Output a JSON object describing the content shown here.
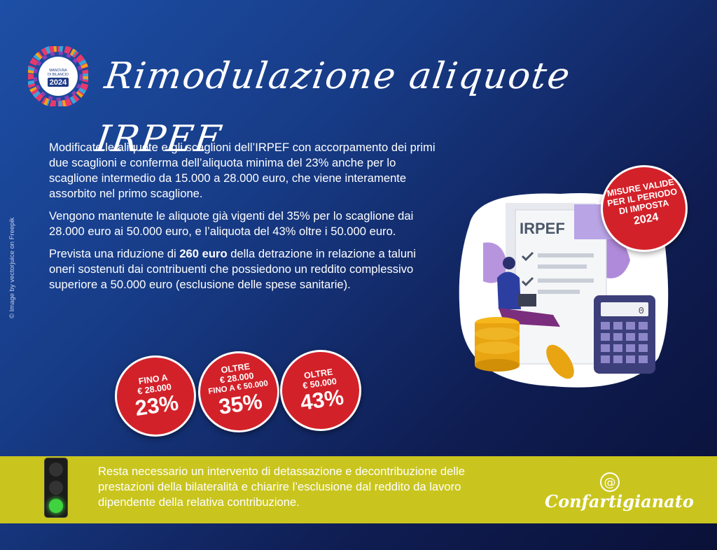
{
  "title": "Rimodulazione aliquote IRPEF",
  "logo": {
    "line1": "MANOVRA",
    "line2": "DI BILANCIO",
    "year": "2024"
  },
  "credit": "© Image by vectorjuice on Freepik",
  "paragraphs": {
    "p1": "Modificate le aliquote e gli scaglioni dell’IRPEF con accorpamento dei primi due scaglioni e conferma dell’aliquota minima del 23% anche per lo scaglione intermedio da 15.000 a 28.000 euro, che viene interamente assorbito nel primo scaglione.",
    "p2": "Vengono mantenute le aliquote già vigenti del 35% per lo scaglione dai 28.000 euro ai 50.000 euro, e l’aliquota del 43% oltre i 50.000 euro.",
    "p3_pre": "Prevista una riduzione di ",
    "p3_bold": "260 euro",
    "p3_post": " della detrazione in relazione a taluni oneri sostenuti dai contribuenti che possiedono un reddito complessivo superiore a 50.000 euro (esclusione delle spese sanitarie)."
  },
  "brackets": [
    {
      "l1": "FINO A",
      "l2": "€ 28.000",
      "l3": "",
      "rate": "23%"
    },
    {
      "l1": "OLTRE",
      "l2": "€ 28.000",
      "l3": "FINO A € 50.000",
      "rate": "35%"
    },
    {
      "l1": "OLTRE",
      "l2": "€ 50.000",
      "l3": "",
      "rate": "43%"
    }
  ],
  "badge": {
    "l1": "MISURE VALIDE",
    "l2": "PER IL PERIODO",
    "l3": "DI IMPOSTA",
    "year": "2024"
  },
  "illustration": {
    "doc_label": "IRPEF",
    "calc_display": "0"
  },
  "bottom": {
    "text": "Resta necessario un intervento di detassazione e decontribuzione delle prestazioni della bilateralità e chiarire l’esclusione dal reddito da lavoro dipendente della relativa contribuzione.",
    "traffic_light_state": "green"
  },
  "brand": {
    "at": "@",
    "name": "Confartigianato"
  },
  "colors": {
    "accent_red": "#d3212a",
    "bar_yellow": "#c9c51e",
    "bg_blue": "#173b86"
  }
}
